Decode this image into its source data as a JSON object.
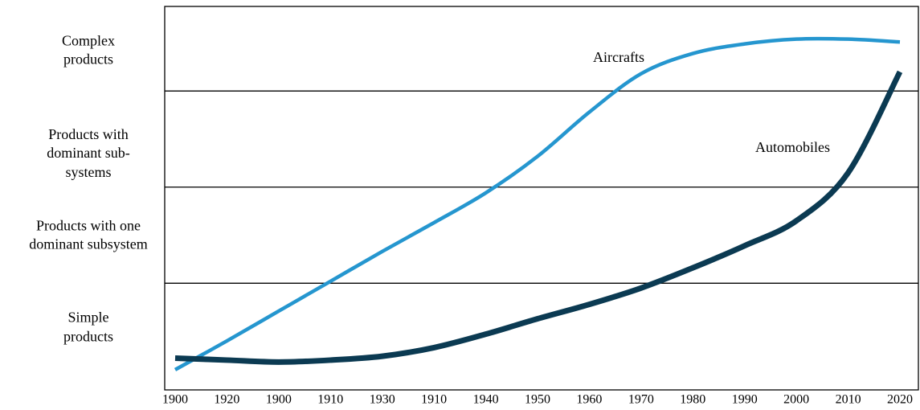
{
  "chart_data": {
    "type": "line",
    "categories": [
      "1900",
      "1920",
      "1900",
      "1910",
      "1930",
      "1910",
      "1940",
      "1950",
      "1960",
      "1970",
      "1980",
      "1990",
      "2000",
      "2010",
      "2020"
    ],
    "series": [
      {
        "name": "Aircrafts",
        "color": "#2596cf",
        "values": [
          0.1,
          0.4,
          0.71,
          1.02,
          1.33,
          1.63,
          1.94,
          2.32,
          2.78,
          3.18,
          3.39,
          3.49,
          3.54,
          3.54,
          3.51
        ]
      },
      {
        "name": "Automobiles",
        "color": "#0b3a52",
        "values": [
          0.22,
          0.2,
          0.18,
          0.2,
          0.24,
          0.33,
          0.47,
          0.63,
          0.78,
          0.95,
          1.16,
          1.39,
          1.65,
          2.15,
          3.2
        ]
      }
    ],
    "ylim": [
      -0.11,
      3.88
    ],
    "yticks": [
      {
        "value": 0.54,
        "label": "Simple\nproducts"
      },
      {
        "value": 1.5,
        "label": "Products with one\ndominant subsystem"
      },
      {
        "value": 2.35,
        "label": "Products with\ndominant sub-\nsystems"
      },
      {
        "value": 3.42,
        "label": "Complex\nproducts"
      }
    ],
    "band_lines": [
      1,
      2,
      3
    ]
  }
}
